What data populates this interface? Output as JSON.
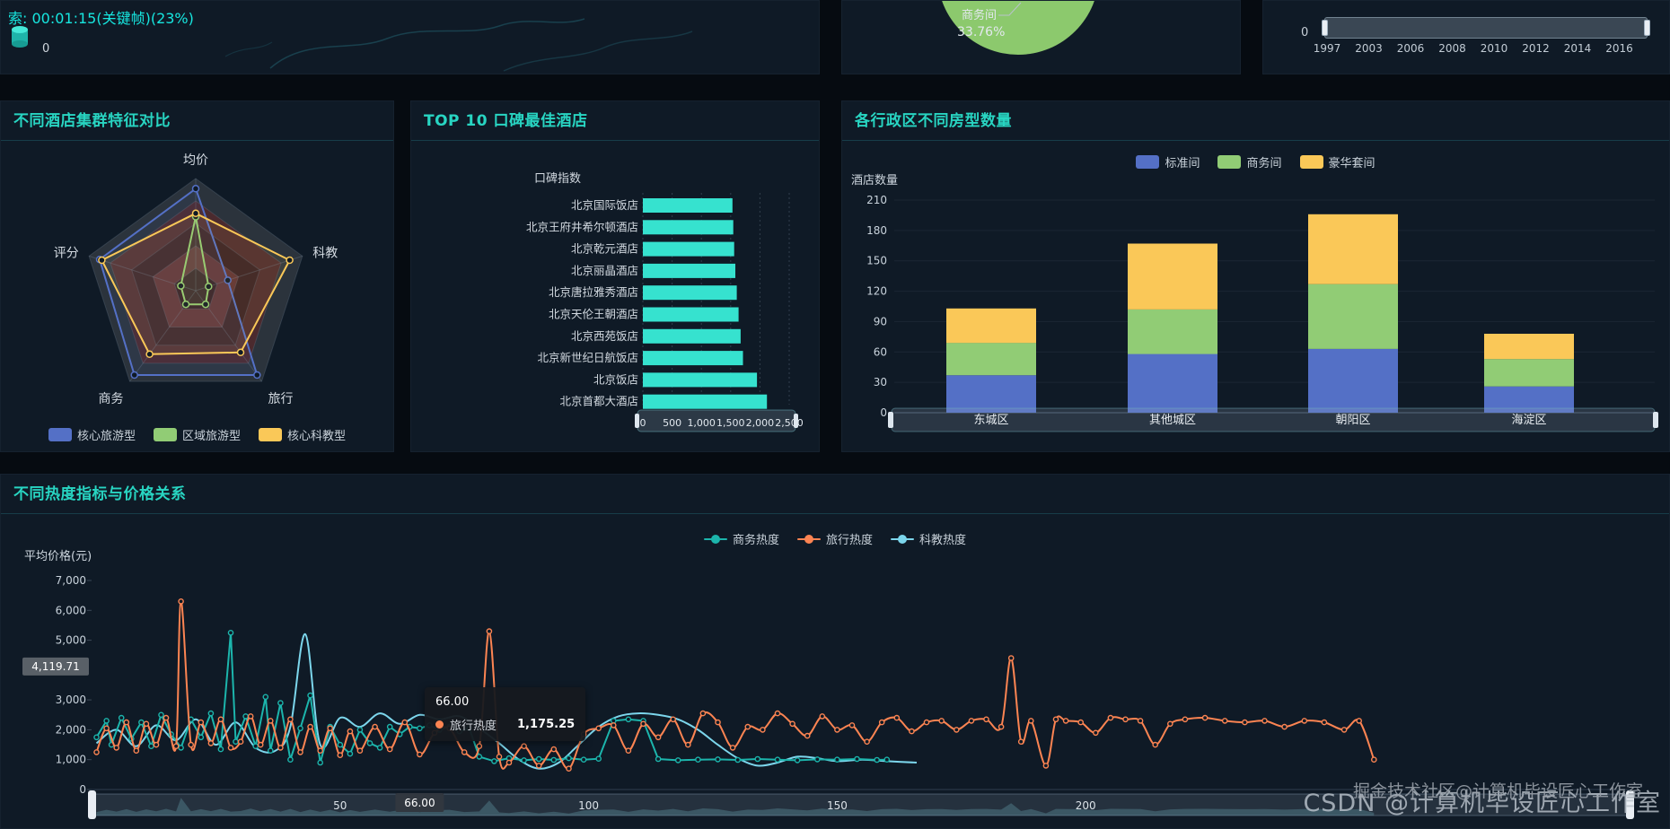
{
  "page": {
    "bg": "#060b11",
    "panel_bg": "#0f1a26",
    "title_color": "#28d5c2"
  },
  "top_left": {
    "overlay_text": "索: 00:01:15(关键帧)(23%)",
    "marker_value": "0"
  },
  "top_pie": {
    "slice_label": "商务间",
    "slice_percent": "33.76%",
    "slice_color": "#8cc96d"
  },
  "top_timeline": {
    "start_label": "0",
    "years": [
      "1997",
      "2003",
      "2006",
      "2008",
      "2010",
      "2012",
      "2014",
      "2016"
    ]
  },
  "panels": {
    "radar_title": "不同酒店集群特征对比",
    "top10_title": "TOP 10 口碑最佳酒店",
    "rooms_title": "各行政区不同房型数量",
    "heat_title": "不同热度指标与价格关系"
  },
  "tooltip": {
    "header": "66.00",
    "series": "旅行热度",
    "value": "1,175.25",
    "dot_color": "#fc8452"
  },
  "axis_pointer": {
    "y_label": "4,119.71",
    "x_label": "66.00"
  },
  "watermarks": {
    "primary": "CSDN @计算机毕设匠心工作室",
    "secondary": "掘金技术社区@计算机毕设匠心工作室"
  },
  "chart_data": [
    {
      "id": "radar",
      "type": "radar",
      "title": "不同酒店集群特征对比",
      "indicators": [
        "均价",
        "科教",
        "旅行",
        "商务",
        "评分"
      ],
      "max": 100,
      "ring_colors": [
        "#2b333c",
        "#4b2a2e",
        "#371f24",
        "#5d3034",
        "#2f1a1f"
      ],
      "series": [
        {
          "name": "核心旅游型",
          "color": "#5470c6",
          "values": [
            91,
            30,
            93,
            93,
            90
          ]
        },
        {
          "name": "区域旅游型",
          "color": "#91cc75",
          "values": [
            66,
            12,
            15,
            15,
            14
          ]
        },
        {
          "name": "核心科教型",
          "color": "#fac858",
          "values": [
            69,
            88,
            68,
            70,
            88
          ]
        }
      ],
      "legend_position": "bottom"
    },
    {
      "id": "top10",
      "type": "bar",
      "title": "TOP 10 口碑最佳酒店",
      "value_axis_name": "口碑指数",
      "categories": [
        "北京国际饭店",
        "北京王府井希尔顿酒店",
        "北京乾元酒店",
        "北京丽晶酒店",
        "北京唐拉雅秀酒店",
        "北京天伦王朝酒店",
        "北京西苑饭店",
        "北京新世纪日航饭店",
        "北京饭店",
        "北京首都大酒店"
      ],
      "values": [
        1530,
        1545,
        1560,
        1580,
        1605,
        1635,
        1670,
        1710,
        1950,
        2120
      ],
      "xlim": [
        0,
        2500
      ],
      "x_tick_labels": [
        "0",
        "500",
        "1,000",
        "1,500",
        "2,000",
        "2,500"
      ],
      "bar_color": "#36e2cf"
    },
    {
      "id": "rooms",
      "type": "stacked-bar",
      "title": "各行政区不同房型数量",
      "ylabel": "酒店数量",
      "categories": [
        "东城区",
        "其他城区",
        "朝阳区",
        "海淀区"
      ],
      "series": [
        {
          "name": "标准间",
          "color": "#5470c6",
          "values": [
            37,
            58,
            63,
            26
          ]
        },
        {
          "name": "商务间",
          "color": "#91cc75",
          "values": [
            32,
            44,
            64,
            27
          ]
        },
        {
          "name": "豪华套间",
          "color": "#fac858",
          "values": [
            34,
            65,
            69,
            25
          ]
        }
      ],
      "ylim": [
        0,
        210
      ],
      "y_ticks": [
        0,
        30,
        60,
        90,
        120,
        150,
        180,
        210
      ],
      "legend_position": "top"
    },
    {
      "id": "heat",
      "type": "line",
      "title": "不同热度指标与价格关系",
      "ylabel": "平均价格(元)",
      "ylim": [
        0,
        7000
      ],
      "y_tick_labels": [
        [
          "7,000",
          7000
        ],
        [
          "6,000",
          6000
        ],
        [
          "5,000",
          5000
        ],
        [
          "3,000",
          3000
        ],
        [
          "2,000",
          2000
        ],
        [
          "1,000",
          1000
        ],
        [
          "0",
          0
        ]
      ],
      "x_ticks": [
        50,
        100,
        150,
        200
      ],
      "series": [
        {
          "name": "商务热度",
          "color": "#1cb5ac",
          "x": [
            1,
            3,
            4,
            6,
            8,
            10,
            12,
            14,
            16,
            18,
            20,
            22,
            24,
            26,
            28,
            29,
            31,
            33,
            35,
            36,
            38,
            40,
            42,
            44,
            46,
            48,
            50,
            52,
            54,
            56,
            58,
            60,
            62,
            64,
            66,
            68,
            70,
            72,
            74,
            76,
            78,
            81,
            84,
            87,
            90,
            93,
            96,
            99,
            102,
            105,
            108,
            111,
            114,
            118,
            122,
            126,
            130,
            134,
            138,
            142,
            146,
            150,
            154,
            158,
            160
          ],
          "y": [
            1750,
            2300,
            1500,
            2400,
            1700,
            2250,
            1450,
            2500,
            1850,
            1400,
            2350,
            1750,
            2550,
            1350,
            5250,
            1600,
            2450,
            1450,
            3100,
            1300,
            2900,
            1000,
            2050,
            3150,
            900,
            2100,
            1500,
            1200,
            2000,
            1550,
            1400,
            2100,
            1850,
            2100,
            2050,
            2150,
            2000,
            2100,
            1950,
            2050,
            1100,
            950,
            1050,
            980,
            1020,
            990,
            1050,
            1000,
            1030,
            2300,
            2350,
            2300,
            1020,
            980,
            1000,
            1010,
            990,
            1020,
            1000,
            980,
            1010,
            1000,
            1020,
            990,
            1000
          ]
        },
        {
          "name": "旅行热度",
          "color": "#fc8452",
          "x": [
            1,
            3,
            5,
            7,
            9,
            11,
            13,
            15,
            17,
            18,
            20,
            22,
            24,
            26,
            28,
            30,
            32,
            34,
            36,
            38,
            40,
            42,
            44,
            46,
            48,
            50,
            52,
            54,
            57,
            60,
            63,
            66,
            69,
            72,
            75,
            78,
            80,
            82,
            84,
            87,
            90,
            93,
            96,
            99,
            102,
            105,
            108,
            111,
            114,
            117,
            120,
            123,
            126,
            129,
            132,
            135,
            138,
            141,
            144,
            147,
            150,
            153,
            156,
            159,
            162,
            165,
            168,
            171,
            174,
            177,
            180,
            183,
            185,
            187,
            189,
            192,
            194,
            196,
            199,
            202,
            205,
            208,
            211,
            214,
            217,
            220,
            224,
            228,
            232,
            236,
            240,
            244,
            248,
            252,
            255,
            258
          ],
          "y": [
            1250,
            2050,
            1400,
            2250,
            1300,
            2200,
            1500,
            2400,
            1450,
            6300,
            1500,
            2250,
            1550,
            2350,
            1400,
            1600,
            2450,
            1500,
            2300,
            1400,
            2350,
            1250,
            2100,
            1300,
            2050,
            1150,
            1950,
            1300,
            2100,
            1350,
            2250,
            1175,
            1900,
            2050,
            1250,
            1450,
            5300,
            1100,
            900,
            1450,
            800,
            1350,
            700,
            1850,
            2050,
            2150,
            1300,
            2200,
            1750,
            2350,
            1500,
            2550,
            2250,
            1400,
            2100,
            2000,
            2550,
            2200,
            1800,
            2450,
            2000,
            2150,
            1600,
            2250,
            2400,
            1950,
            2250,
            2300,
            2000,
            2300,
            2350,
            2100,
            4400,
            1600,
            2300,
            800,
            2350,
            2300,
            2250,
            1900,
            2400,
            2350,
            2300,
            1500,
            2200,
            2350,
            2400,
            2300,
            2250,
            2300,
            2100,
            2300,
            2250,
            2000,
            2300,
            1000
          ]
        },
        {
          "name": "科教热度",
          "color": "#7cd6ec",
          "x": [
            1,
            5,
            9,
            13,
            17,
            21,
            25,
            29,
            33,
            37,
            40,
            43,
            46,
            50,
            54,
            58,
            62,
            66,
            70,
            74,
            78,
            82,
            86,
            90,
            94,
            98,
            102,
            106,
            110,
            114,
            118,
            122,
            126,
            130,
            134,
            138,
            142,
            146,
            150,
            155,
            160,
            166
          ],
          "y": [
            1550,
            2000,
            1450,
            2150,
            1650,
            2350,
            1500,
            2250,
            1400,
            1300,
            2100,
            5200,
            1500,
            2400,
            2100,
            2550,
            2200,
            2500,
            2350,
            2450,
            2050,
            1550,
            1000,
            700,
            900,
            1500,
            2100,
            2450,
            2550,
            2500,
            2350,
            2000,
            1500,
            1050,
            800,
            900,
            1100,
            1050,
            950,
            1000,
            950,
            900
          ]
        }
      ],
      "legend_position": "top"
    },
    {
      "id": "top-pie",
      "type": "pie",
      "visible_slice": {
        "name": "商务间",
        "percent": "33.76%",
        "color": "#8cc96d"
      }
    }
  ]
}
